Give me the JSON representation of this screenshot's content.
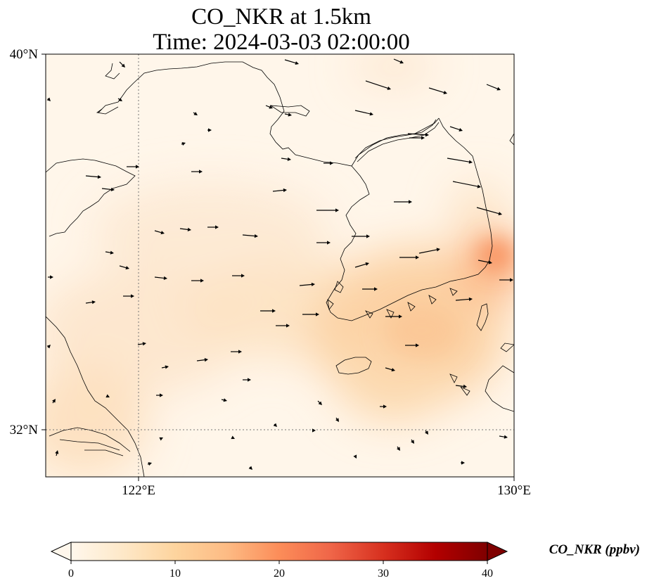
{
  "title": {
    "line1": "CO_NKR at 1.5km",
    "line2": "Time: 2024-03-03 02:00:00"
  },
  "map": {
    "extent": {
      "lon_min": 121,
      "lon_max": 130,
      "lat_min": 31,
      "lat_max": 40
    },
    "lat_ticks": [
      {
        "value": 40,
        "label": "40°N"
      },
      {
        "value": 32,
        "label": "32°N"
      }
    ],
    "lon_ticks": [
      {
        "value": 122,
        "label": "122°E"
      },
      {
        "value": 130,
        "label": "130°E"
      }
    ],
    "gridlines": "dotted at 122°E and 32°N",
    "colors": {
      "coastline": "#000000",
      "grid": "#777777",
      "vectors": "#000000",
      "background_min": "#fff6ea"
    }
  },
  "colorbar": {
    "label": "CO_NKR (ppbv)",
    "ticks": [
      "0",
      "10",
      "20",
      "30",
      "40"
    ],
    "min": 0,
    "max": 40,
    "colormap": "OrRd",
    "stops": [
      "#fff7ec",
      "#fee8c8",
      "#fdd49e",
      "#fdbb84",
      "#fc8d59",
      "#ef6548",
      "#d7301f",
      "#b30000",
      "#7f0000"
    ]
  }
}
